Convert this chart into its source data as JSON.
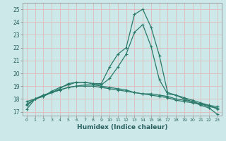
{
  "xlabel": "Humidex (Indice chaleur)",
  "bg_color": "#cce8e8",
  "grid_color": "#ddbbbb",
  "line_color": "#2a7a6a",
  "tick_color": "#2a6060",
  "xlim": [
    -0.5,
    23.5
  ],
  "ylim": [
    16.7,
    25.5
  ],
  "xticks": [
    0,
    1,
    2,
    3,
    4,
    5,
    6,
    7,
    8,
    9,
    10,
    11,
    12,
    13,
    14,
    15,
    16,
    17,
    18,
    19,
    20,
    21,
    22,
    23
  ],
  "yticks": [
    17,
    18,
    19,
    20,
    21,
    22,
    23,
    24,
    25
  ],
  "curves": [
    [
      17.2,
      18.0,
      18.3,
      18.5,
      18.8,
      19.2,
      19.3,
      19.3,
      19.2,
      19.2,
      20.5,
      21.5,
      22.0,
      24.6,
      25.0,
      23.6,
      21.4,
      18.5,
      18.3,
      18.0,
      17.8,
      17.5,
      17.3,
      16.8
    ],
    [
      17.5,
      18.0,
      18.2,
      18.6,
      18.9,
      19.1,
      19.3,
      19.3,
      19.2,
      19.1,
      19.6,
      20.5,
      21.5,
      23.2,
      23.8,
      22.1,
      19.5,
      18.4,
      18.3,
      18.1,
      17.9,
      17.7,
      17.5,
      17.2
    ],
    [
      17.8,
      18.0,
      18.2,
      18.5,
      18.7,
      18.9,
      19.0,
      19.1,
      19.1,
      19.0,
      18.9,
      18.8,
      18.7,
      18.5,
      18.4,
      18.4,
      18.3,
      18.2,
      18.0,
      17.9,
      17.8,
      17.6,
      17.5,
      17.4
    ],
    [
      17.6,
      18.0,
      18.3,
      18.5,
      18.7,
      18.9,
      19.0,
      19.0,
      19.0,
      18.9,
      18.8,
      18.7,
      18.6,
      18.5,
      18.4,
      18.3,
      18.2,
      18.1,
      17.9,
      17.8,
      17.7,
      17.6,
      17.4,
      17.3
    ]
  ]
}
